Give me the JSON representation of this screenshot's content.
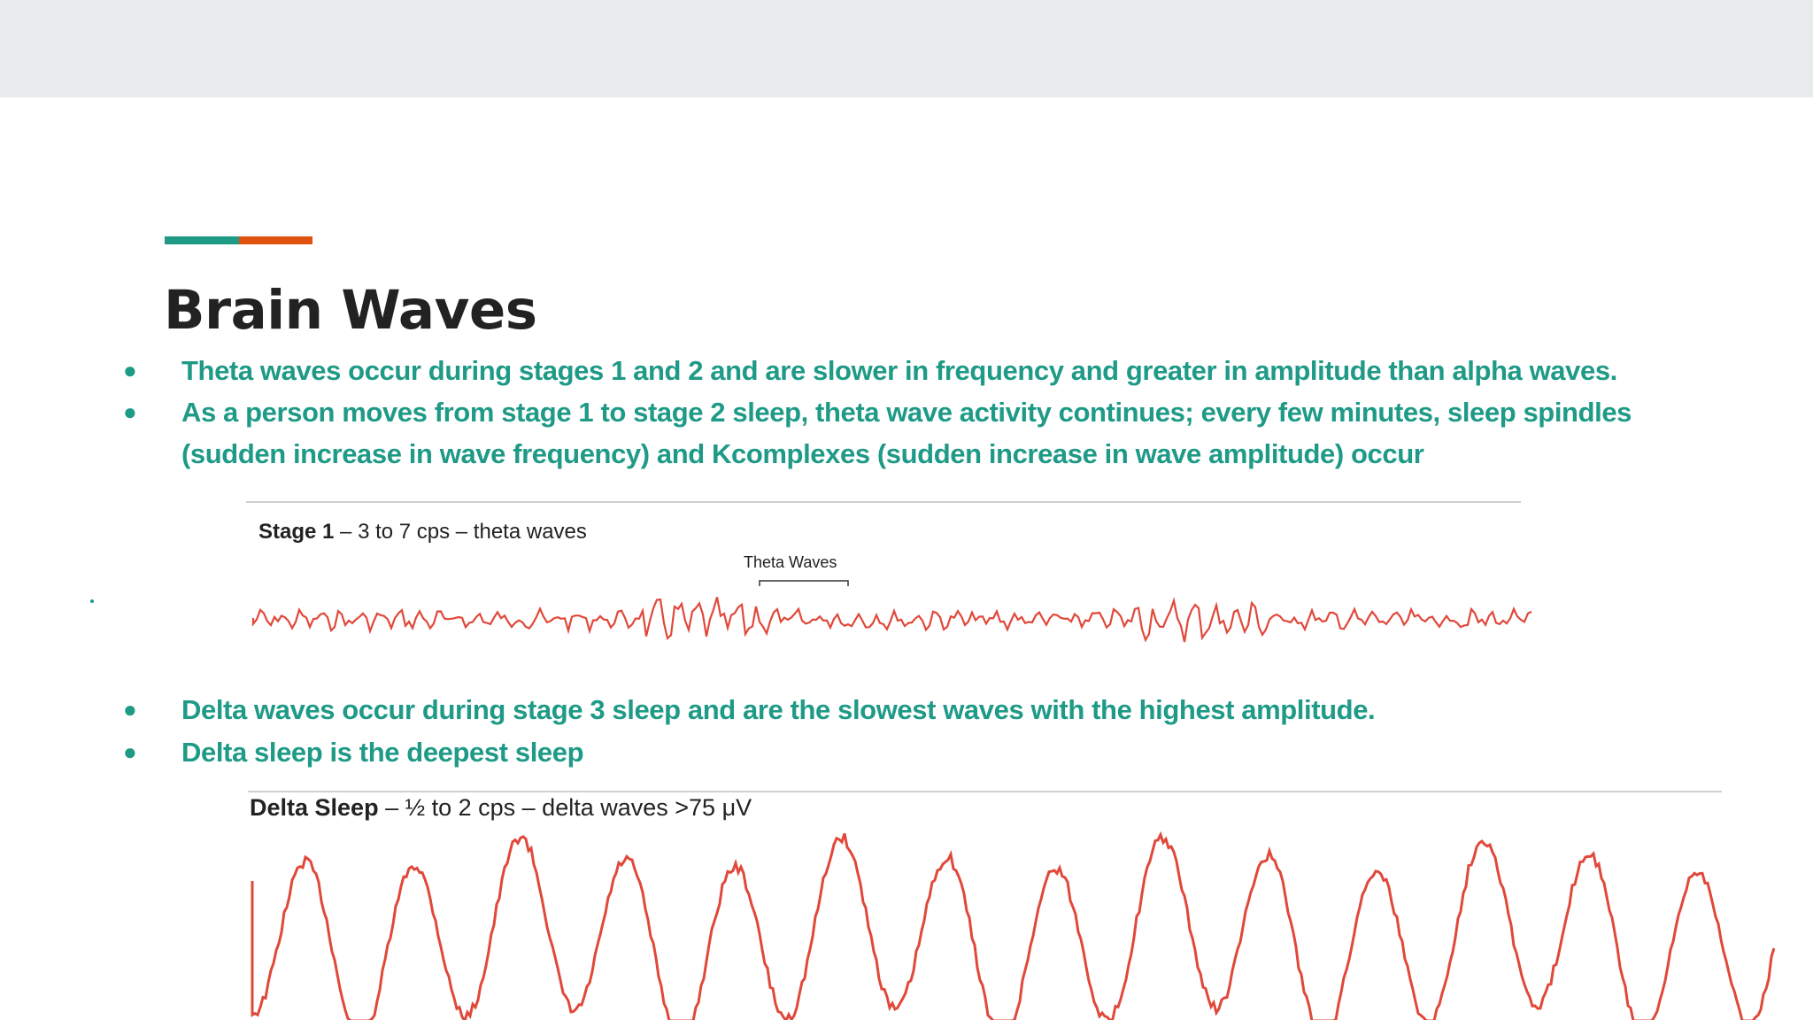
{
  "slide": {
    "title": "Brain Waves",
    "accent_colors": [
      "#1e9a87",
      "#e0520f"
    ],
    "text_color": "#1e9a87"
  },
  "bullets_top": [
    {
      "text": "Theta waves occur during stages 1 and 2 and are slower in frequency and greater in amplitude than alpha waves."
    },
    {
      "text": "As a person moves from stage 1 to stage 2 sleep, theta wave activity continues; every few minutes, sleep spindles (sudden increase in wave frequency) and Kcomplexes (sudden increase in wave amplitude) occur"
    }
  ],
  "bullets_bottom": [
    {
      "text": "Delta waves occur during stage 3 sleep and are the slowest waves with the highest amplitude."
    },
    {
      "text": "Delta sleep is the deepest sleep"
    }
  ],
  "figure_theta": {
    "stage_label": "Stage 1",
    "caption": "– 3 to 7 cps – theta waves",
    "annotation": "Theta Waves",
    "trace_color": "#e0483a"
  },
  "figure_delta": {
    "stage_label": "Delta Sleep",
    "caption": "– ½ to 2 cps – delta waves >75  μV",
    "trace_color": "#e0483a"
  }
}
